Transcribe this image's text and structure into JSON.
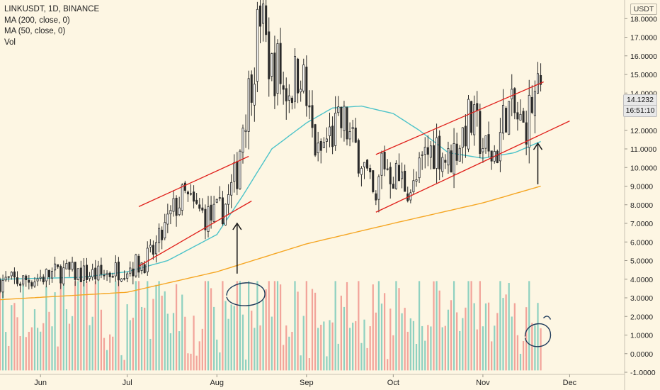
{
  "legend": {
    "symbol": "LINKUSDT, 1D, BINANCE",
    "ma200": "MA (200, close, 0)",
    "ma50": "MA (50, close, 0)",
    "vol": "Vol"
  },
  "badges": {
    "unit": "USDT",
    "last_price": "14.1232",
    "countdown": "16:51:10"
  },
  "colors": {
    "background": "#fdf6e3",
    "candle": "#2a2a2a",
    "ma50": "#4cc3c9",
    "ma200": "#f5a623",
    "channel": "#e0201b",
    "arrow": "#111111",
    "annotation": "#1d3a5a",
    "vol_up": "#8fd1c0",
    "vol_down": "#f2a49a"
  },
  "chart_data": {
    "type": "candlestick",
    "yaxis": {
      "range": [
        -1,
        19
      ],
      "ticks": [
        "18.0000",
        "17.0000",
        "16.0000",
        "15.0000",
        "14.0000",
        "13.0000",
        "12.0000",
        "11.0000",
        "10.0000",
        "9.0000",
        "8.0000",
        "7.0000",
        "6.0000",
        "5.0000",
        "4.0000",
        "3.0000",
        "2.0000",
        "1.0000",
        "0.0000",
        "-1.0000"
      ]
    },
    "xaxis": {
      "range": [
        "2020-05-18",
        "2020-12-20"
      ],
      "ticks": [
        {
          "label": "Jun",
          "date": "2020-06-01"
        },
        {
          "label": "Jul",
          "date": "2020-07-01"
        },
        {
          "label": "Aug",
          "date": "2020-08-01"
        },
        {
          "label": "Sep",
          "date": "2020-09-01"
        },
        {
          "label": "Oct",
          "date": "2020-10-01"
        },
        {
          "label": "Nov",
          "date": "2020-11-01"
        },
        {
          "label": "Dec",
          "date": "2020-12-01"
        }
      ]
    },
    "close_path": [
      [
        "2020-05-18",
        3.9
      ],
      [
        "2020-05-25",
        3.9
      ],
      [
        "2020-06-01",
        4.1
      ],
      [
        "2020-06-08",
        4.4
      ],
      [
        "2020-06-15",
        4.3
      ],
      [
        "2020-06-22",
        4.2
      ],
      [
        "2020-06-29",
        4.6
      ],
      [
        "2020-07-05",
        4.8
      ],
      [
        "2020-07-09",
        5.2
      ],
      [
        "2020-07-12",
        6.0
      ],
      [
        "2020-07-15",
        7.0
      ],
      [
        "2020-07-18",
        8.0
      ],
      [
        "2020-07-21",
        8.4
      ],
      [
        "2020-07-24",
        7.8
      ],
      [
        "2020-07-27",
        7.5
      ],
      [
        "2020-07-30",
        7.3
      ],
      [
        "2020-08-02",
        7.6
      ],
      [
        "2020-08-05",
        8.3
      ],
      [
        "2020-08-08",
        9.8
      ],
      [
        "2020-08-10",
        12.5
      ],
      [
        "2020-08-12",
        14.0
      ],
      [
        "2020-08-14",
        16.0
      ],
      [
        "2020-08-16",
        18.5
      ],
      [
        "2020-08-18",
        16.5
      ],
      [
        "2020-08-20",
        15.2
      ],
      [
        "2020-08-22",
        15.5
      ],
      [
        "2020-08-24",
        14.2
      ],
      [
        "2020-08-27",
        14.5
      ],
      [
        "2020-08-30",
        15.5
      ],
      [
        "2020-09-02",
        12.5
      ],
      [
        "2020-09-05",
        10.5
      ],
      [
        "2020-09-08",
        11.5
      ],
      [
        "2020-09-11",
        12.0
      ],
      [
        "2020-09-14",
        12.4
      ],
      [
        "2020-09-17",
        11.2
      ],
      [
        "2020-09-20",
        10.6
      ],
      [
        "2020-09-23",
        8.8
      ],
      [
        "2020-09-25",
        7.8
      ],
      [
        "2020-09-27",
        10.5
      ],
      [
        "2020-09-30",
        9.8
      ],
      [
        "2020-10-04",
        9.3
      ],
      [
        "2020-10-08",
        8.8
      ],
      [
        "2020-10-12",
        10.6
      ],
      [
        "2020-10-16",
        11.2
      ],
      [
        "2020-10-20",
        10.3
      ],
      [
        "2020-10-24",
        11.5
      ],
      [
        "2020-10-27",
        12.5
      ],
      [
        "2020-10-30",
        12.0
      ],
      [
        "2020-11-03",
        10.5
      ],
      [
        "2020-11-06",
        11.0
      ],
      [
        "2020-11-09",
        13.2
      ],
      [
        "2020-11-12",
        12.8
      ],
      [
        "2020-11-15",
        12.0
      ],
      [
        "2020-11-18",
        13.4
      ],
      [
        "2020-11-21",
        14.1
      ]
    ],
    "ma50": [
      [
        "2020-05-18",
        4.0
      ],
      [
        "2020-06-15",
        4.1
      ],
      [
        "2020-07-01",
        4.4
      ],
      [
        "2020-07-15",
        5.0
      ],
      [
        "2020-08-01",
        6.4
      ],
      [
        "2020-08-10",
        8.5
      ],
      [
        "2020-08-20",
        11.0
      ],
      [
        "2020-09-01",
        12.4
      ],
      [
        "2020-09-10",
        13.2
      ],
      [
        "2020-09-20",
        13.3
      ],
      [
        "2020-10-01",
        12.9
      ],
      [
        "2020-10-10",
        12.0
      ],
      [
        "2020-10-20",
        10.8
      ],
      [
        "2020-11-01",
        10.5
      ],
      [
        "2020-11-12",
        10.8
      ],
      [
        "2020-11-21",
        11.4
      ]
    ],
    "ma200": [
      [
        "2020-05-18",
        2.9
      ],
      [
        "2020-07-01",
        3.3
      ],
      [
        "2020-08-01",
        4.4
      ],
      [
        "2020-09-01",
        5.9
      ],
      [
        "2020-10-01",
        7.0
      ],
      [
        "2020-11-01",
        8.1
      ],
      [
        "2020-11-21",
        9.0
      ]
    ],
    "volume_range": [
      -1,
      19
    ],
    "annotations": {
      "channels": [
        {
          "upper": [
            [
              "2020-07-05",
              7.9
            ],
            [
              "2020-08-12",
              10.6
            ]
          ],
          "lower": [
            [
              "2020-07-05",
              4.7
            ],
            [
              "2020-08-13",
              8.2
            ]
          ]
        },
        {
          "upper": [
            [
              "2020-09-25",
              10.7
            ],
            [
              "2020-11-22",
              14.6
            ]
          ],
          "lower": [
            [
              "2020-09-25",
              7.6
            ],
            [
              "2020-12-01",
              12.5
            ]
          ]
        }
      ],
      "arrows": [
        {
          "date": "2020-08-08",
          "from": 4.3,
          "to": 7.0
        },
        {
          "date": "2020-11-20",
          "from": 9.1,
          "to": 11.3
        }
      ],
      "circles": [
        {
          "date": "2020-08-11",
          "value": 3.2
        },
        {
          "date": "2020-11-20",
          "value": 1.0
        }
      ]
    }
  }
}
